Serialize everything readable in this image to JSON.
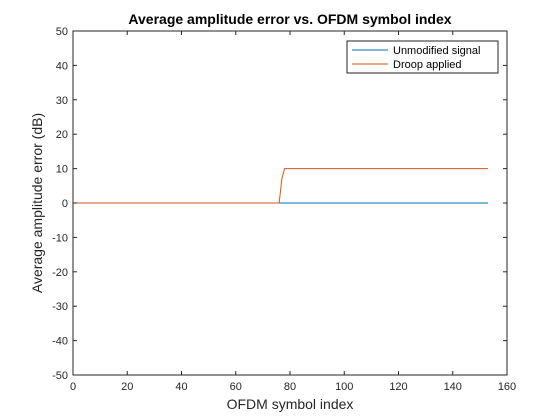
{
  "chart_data": {
    "type": "line",
    "title": "Average amplitude error vs. OFDM symbol index",
    "xlabel": "OFDM symbol index",
    "ylabel": "Average amplitude error (dB)",
    "xlim": [
      0,
      160
    ],
    "ylim": [
      -50,
      50
    ],
    "xticks": [
      0,
      20,
      40,
      60,
      80,
      100,
      120,
      140,
      160
    ],
    "yticks": [
      -50,
      -40,
      -30,
      -20,
      -10,
      0,
      10,
      20,
      30,
      40,
      50
    ],
    "grid": false,
    "legend_position": "top-right",
    "series": [
      {
        "name": "Unmodified signal",
        "color": "#0072BD",
        "x": [
          0,
          153
        ],
        "y": [
          0,
          0
        ]
      },
      {
        "name": "Droop applied",
        "color": "#D95319",
        "x": [
          0,
          76,
          77,
          78,
          153
        ],
        "y": [
          0,
          0,
          7,
          10,
          10
        ]
      }
    ]
  }
}
